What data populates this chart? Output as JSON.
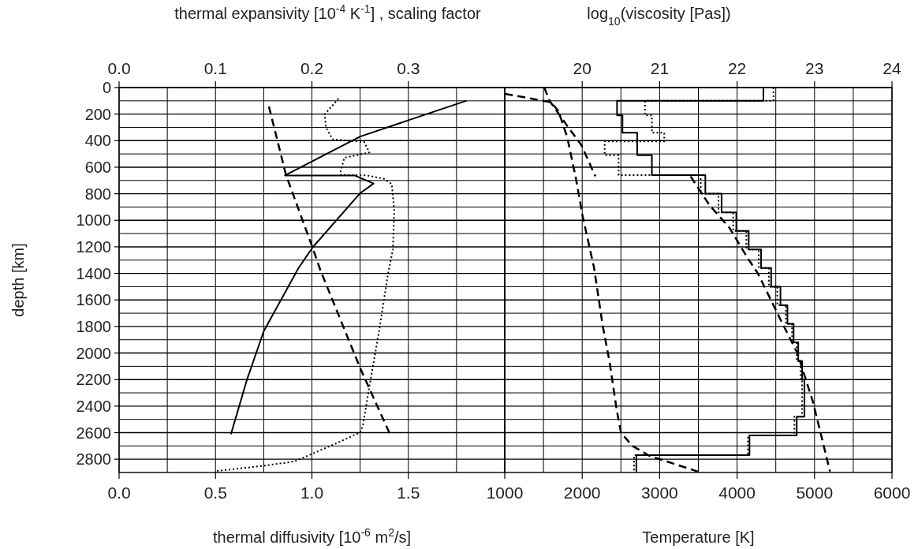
{
  "chart_data": [
    {
      "type": "line",
      "xlabel": "thermal diffusivity [10$^{-6}$ m$^{2}$/s]",
      "x2label": "thermal expansivity [10$^{-4}$ K$^{-1}$] ,  scaling factor",
      "ylabel": "depth [km]",
      "xlim": [
        0,
        2
      ],
      "xticks": [
        {
          "value": 0,
          "label": "0.0"
        },
        {
          "value": 0.25,
          "label": null
        },
        0.5,
        {
          "value": 0.75,
          "label": null
        },
        {
          "value": 1,
          "label": "1.0"
        },
        {
          "value": 1.25,
          "label": null
        },
        1.5,
        {
          "value": 1.75,
          "label": null
        }
      ],
      "x2lim": [
        0,
        0.4
      ],
      "x2ticks": [
        {
          "value": 0,
          "label": "0.0"
        },
        0.1,
        0.2,
        0.3
      ],
      "ylim": [
        2900,
        0
      ],
      "yticks": [
        0,
        {
          "value": 100,
          "label": null
        },
        200,
        {
          "value": 300,
          "label": null
        },
        400,
        {
          "value": 500,
          "label": null
        },
        600,
        {
          "value": 700,
          "label": null
        },
        800,
        {
          "value": 900,
          "label": null
        },
        1000,
        {
          "value": 1100,
          "label": null
        },
        1200,
        {
          "value": 1300,
          "label": null
        },
        1400,
        {
          "value": 1500,
          "label": null
        },
        1600,
        {
          "value": 1700,
          "label": null
        },
        1800,
        {
          "value": 1900,
          "label": null
        },
        2000,
        {
          "value": 2100,
          "label": null
        },
        2200,
        {
          "value": 2300,
          "label": null
        },
        2400,
        {
          "value": 2500,
          "label": null
        },
        2600,
        {
          "value": 2700,
          "label": null
        },
        2800
      ],
      "grid": true,
      "series": [
        {
          "axis": "x2",
          "color": "#000000",
          "line_style": "solid",
          "x": [
            0.3605,
            0.25,
            0.172,
            0.2446,
            0.264,
            0.25,
            0.201,
            0.186,
            0.15,
            0.1326,
            0.116
          ],
          "values": [
            99,
            369,
            662,
            663,
            723,
            796,
            1202,
            1361,
            1836,
            2202,
            2612
          ]
        },
        {
          "axis": "x2",
          "color": "#000000",
          "line_style": "dashed",
          "x": [
            0.1554,
            0.1731,
            0.201,
            0.209,
            0.25,
            0.281
          ],
          "values": [
            143,
            658,
            1212,
            1380,
            2113,
            2612
          ]
        },
        {
          "color": "#000000",
          "line_style": "dotted",
          "x": [
            1.138,
            1.066,
            1.073,
            1.107,
            1.271,
            1.298,
            1.168,
            1.148,
            1.148,
            1.284,
            1.373,
            1.414,
            1.427,
            1.42,
            1.395,
            1.346,
            1.298,
            1.264,
            1.25,
            1.114,
            0.909,
            0.746,
            0.5
          ],
          "values": [
            83,
            202,
            301,
            390,
            410,
            489,
            529,
            638,
            658,
            662,
            687,
            727,
            925,
            1222,
            1400,
            1856,
            2252,
            2549,
            2599,
            2688,
            2817,
            2850,
            2890
          ]
        }
      ]
    },
    {
      "type": "line",
      "xlabel": "Temperature [K]",
      "x2label": "log$_{10}$(viscosity [Pas])",
      "tick_labels": "x",
      "xlim": [
        1000,
        6000
      ],
      "xticks": [
        1000,
        {
          "value": 1500,
          "label": null
        },
        2000,
        {
          "value": 2500,
          "label": null
        },
        3000,
        {
          "value": 3500,
          "label": null
        },
        4000,
        {
          "value": 4500,
          "label": null
        },
        5000,
        {
          "value": 5500,
          "label": null
        },
        6000
      ],
      "x2lim": [
        19,
        24
      ],
      "x2ticks": [
        20,
        21,
        22,
        23,
        24
      ],
      "ylim": [
        2900,
        0
      ],
      "yticks": [
        0,
        {
          "value": 100,
          "label": null
        },
        200,
        {
          "value": 300,
          "label": null
        },
        400,
        {
          "value": 500,
          "label": null
        },
        600,
        {
          "value": 700,
          "label": null
        },
        800,
        {
          "value": 900,
          "label": null
        },
        1000,
        {
          "value": 1100,
          "label": null
        },
        1200,
        {
          "value": 1300,
          "label": null
        },
        1400,
        {
          "value": 1500,
          "label": null
        },
        1600,
        {
          "value": 1700,
          "label": null
        },
        1800,
        {
          "value": 1900,
          "label": null
        },
        2000,
        {
          "value": 2100,
          "label": null
        },
        2200,
        {
          "value": 2300,
          "label": null
        },
        2400,
        {
          "value": 2500,
          "label": null
        },
        2600,
        {
          "value": 2700,
          "label": null
        },
        2800
      ],
      "grid": true,
      "series": [
        {
          "color": "#000000",
          "line_style": "dashed",
          "x": [
            1004,
            1511,
            1601,
            1692,
            1804,
            1914,
            2006,
            2154,
            2263,
            2354,
            2446,
            2502,
            2650,
            2870,
            3495
          ],
          "values": [
            47,
            101,
            112,
            176,
            368,
            669,
            969,
            1360,
            1788,
            2067,
            2430,
            2602,
            2700,
            2775,
            2893
          ]
        },
        {
          "axis": "x2",
          "color": "#000000",
          "line_style": "dashed",
          "x": [
            19.51,
            19.58,
            19.8,
            19.99,
            20.17,
            null,
            21.4,
            21.64,
            21.9,
            22.12,
            22.27,
            22.56,
            22.78,
            22.98,
            23.2
          ],
          "values": [
            0,
            101,
            283,
            434,
            669,
            null,
            669,
            883,
            1055,
            1269,
            1402,
            1747,
            2002,
            2368,
            2893
          ]
        },
        {
          "axis": "x2",
          "color": "#000000",
          "line_style": "solid",
          "x": [
            22.34,
            22.34,
            20.45,
            20.45,
            20.52,
            20.52,
            20.71,
            20.71,
            20.9,
            20.9,
            21.59,
            21.59,
            21.8,
            21.8,
            21.99,
            21.99,
            22.15,
            22.15,
            22.31,
            22.31,
            22.44,
            22.44,
            22.56,
            22.56,
            22.65,
            22.65,
            22.73,
            22.73,
            22.79,
            22.79,
            22.84,
            22.84,
            22.87,
            22.87,
            22.77,
            22.77,
            22.16,
            22.16,
            20.7,
            20.7
          ],
          "values": [
            0,
            100,
            100,
            210,
            210,
            340,
            340,
            510,
            510,
            660,
            660,
            800,
            800,
            940,
            940,
            1080,
            1080,
            1220,
            1220,
            1360,
            1360,
            1500,
            1500,
            1640,
            1640,
            1780,
            1780,
            1920,
            1920,
            2060,
            2060,
            2200,
            2200,
            2480,
            2480,
            2620,
            2620,
            2770,
            2770,
            2900
          ]
        },
        {
          "axis": "x2",
          "color": "#000000",
          "line_style": "dotted",
          "x": [
            22.47,
            22.47,
            20.81,
            20.81,
            20.9,
            20.9,
            21.06,
            21.06,
            20.29,
            20.29,
            20.47,
            20.47,
            21.53,
            21.53,
            21.76,
            21.76,
            21.95,
            21.95,
            22.12,
            22.12,
            22.28,
            22.28,
            22.41,
            22.41,
            22.52,
            22.52,
            22.63,
            22.63,
            22.71,
            22.71,
            22.77,
            22.77,
            22.82,
            22.82,
            22.84,
            22.84,
            22.74,
            22.74,
            22.14,
            22.14,
            20.67,
            20.67
          ],
          "values": [
            0,
            100,
            100,
            210,
            210,
            340,
            340,
            405,
            405,
            510,
            510,
            660,
            660,
            800,
            800,
            940,
            940,
            1080,
            1080,
            1220,
            1220,
            1360,
            1360,
            1500,
            1500,
            1640,
            1640,
            1780,
            1780,
            1920,
            1920,
            2060,
            2060,
            2200,
            2200,
            2480,
            2480,
            2620,
            2620,
            2770,
            2770,
            2900
          ]
        }
      ]
    }
  ]
}
